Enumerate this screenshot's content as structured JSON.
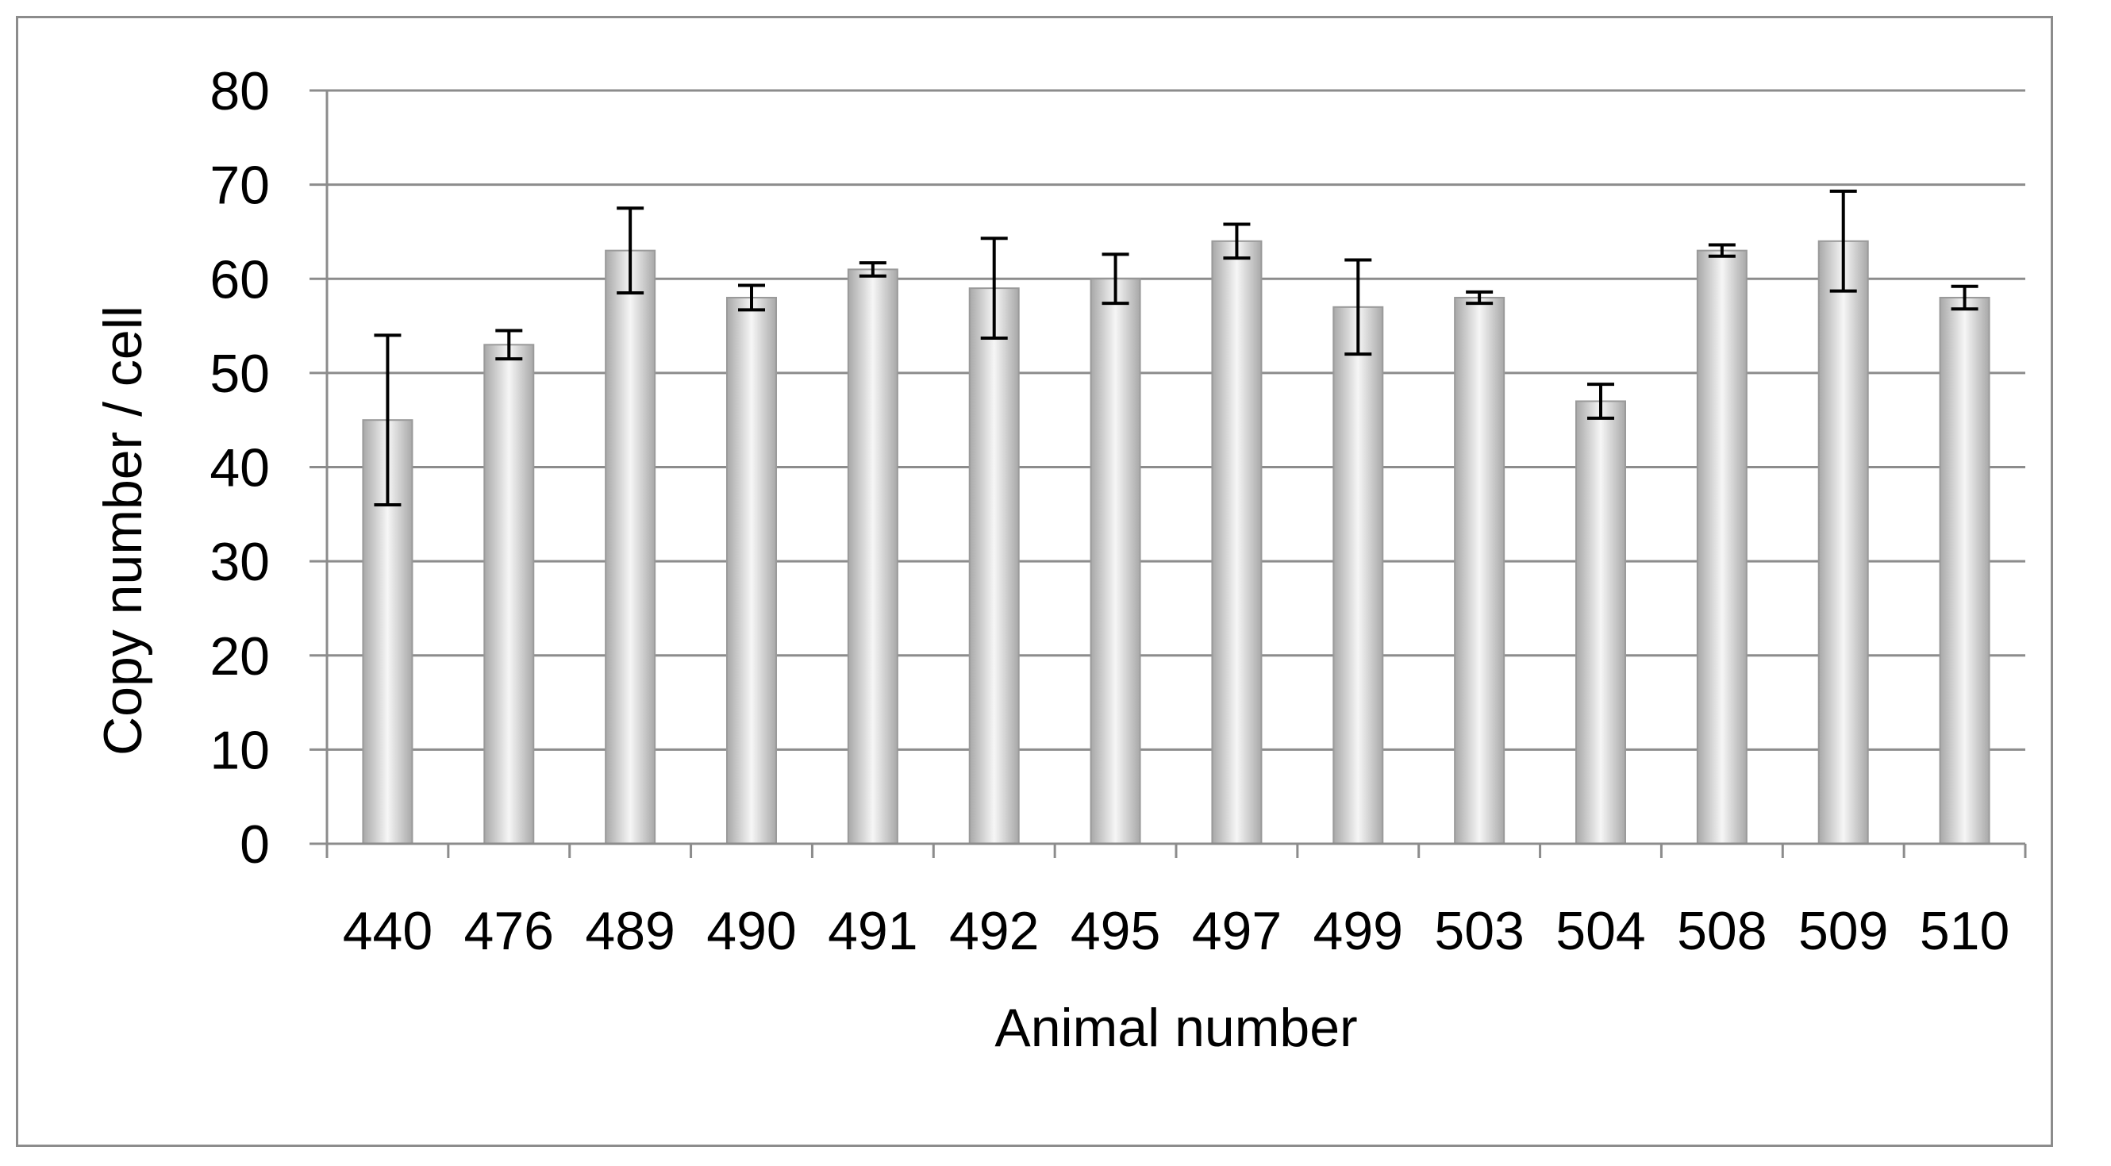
{
  "chart_data": {
    "type": "bar",
    "title": "",
    "xlabel": "Animal number",
    "ylabel": "Copy number / cell",
    "ylim": [
      0,
      80
    ],
    "yticks": [
      0,
      10,
      20,
      30,
      40,
      50,
      60,
      70,
      80
    ],
    "grid": true,
    "legend": "none",
    "categories": [
      "440",
      "476",
      "489",
      "490",
      "491",
      "492",
      "495",
      "497",
      "499",
      "503",
      "504",
      "508",
      "509",
      "510"
    ],
    "series": [
      {
        "values": [
          45,
          53,
          63,
          58,
          61,
          59,
          60,
          64,
          57,
          58,
          47,
          63,
          64,
          58
        ],
        "error": [
          9.0,
          1.5,
          4.5,
          1.3,
          0.7,
          5.3,
          2.6,
          1.8,
          5.0,
          0.6,
          1.8,
          0.6,
          5.3,
          1.2
        ]
      }
    ],
    "colors": {
      "bar_edge": "#9a9a9a",
      "bar_light": "#f4f4f4",
      "bar_mid": "#d2d2d2",
      "gridline": "#8c8c8c",
      "error_bar": "#000000"
    }
  }
}
